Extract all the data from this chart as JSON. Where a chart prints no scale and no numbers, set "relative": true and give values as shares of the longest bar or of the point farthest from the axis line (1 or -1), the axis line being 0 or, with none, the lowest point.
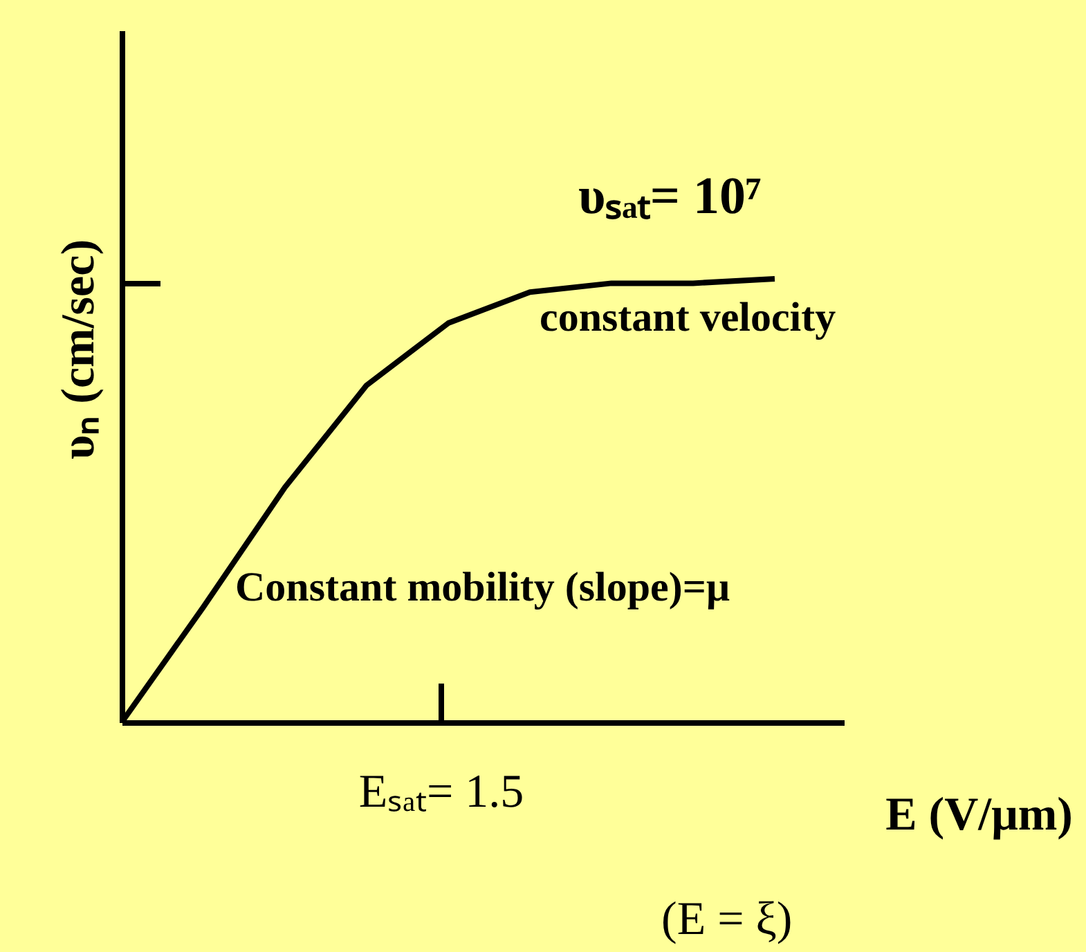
{
  "chart_data": {
    "type": "line",
    "relative": true,
    "xlabel": "E (V/μm)",
    "ylabel": "υₙ (cm/sec)",
    "categories": [
      null,
      null,
      null,
      null,
      null,
      null,
      null,
      null,
      null
    ],
    "series": [
      {
        "color": "#000000",
        "values": [
          0,
          0.26,
          0.53,
          0.76,
          0.9,
          0.97,
          0.99,
          0.99,
          1.0
        ]
      }
    ],
    "annotations": [
      "υₛₐₜ= 10⁷",
      "constant velocity",
      "Constant mobility (slope)=μ",
      "(E = ξ)",
      "Eₛₐₜ= 1.5"
    ],
    "grid": false,
    "marker": "none",
    "line_style": "solid"
  }
}
